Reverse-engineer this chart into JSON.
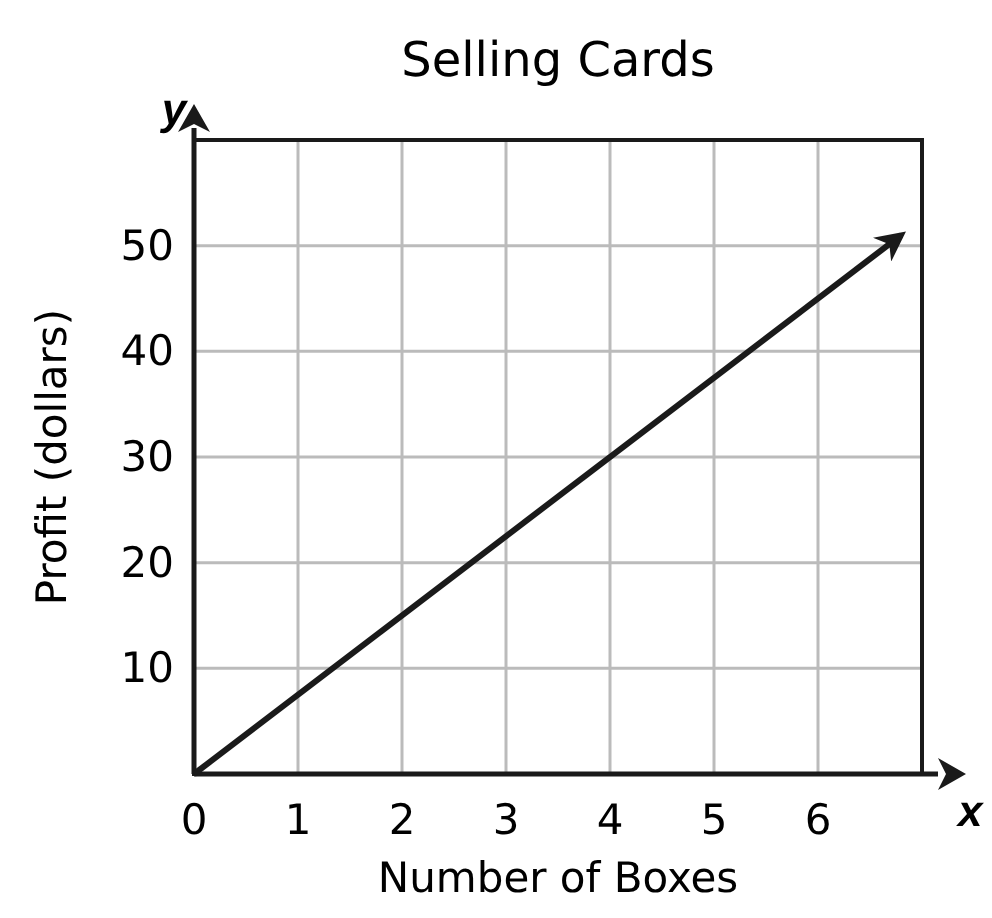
{
  "chart_data": {
    "type": "line",
    "title": "Selling Cards",
    "xlabel": "Number of Boxes",
    "ylabel": "Profit (dollars)",
    "x": [
      0,
      6.8
    ],
    "series": [
      {
        "color": "#1a1a1a",
        "values": [
          0,
          51
        ]
      }
    ],
    "xlim": [
      0,
      7
    ],
    "ylim": [
      0,
      60
    ],
    "xticks": [
      0,
      1,
      2,
      3,
      4,
      5,
      6
    ],
    "yticks": [
      {
        "value": 0,
        "label": null
      },
      10,
      20,
      30,
      40,
      50
    ],
    "grid": true,
    "line_style": "solid",
    "annotations": [
      "x",
      "y"
    ]
  }
}
